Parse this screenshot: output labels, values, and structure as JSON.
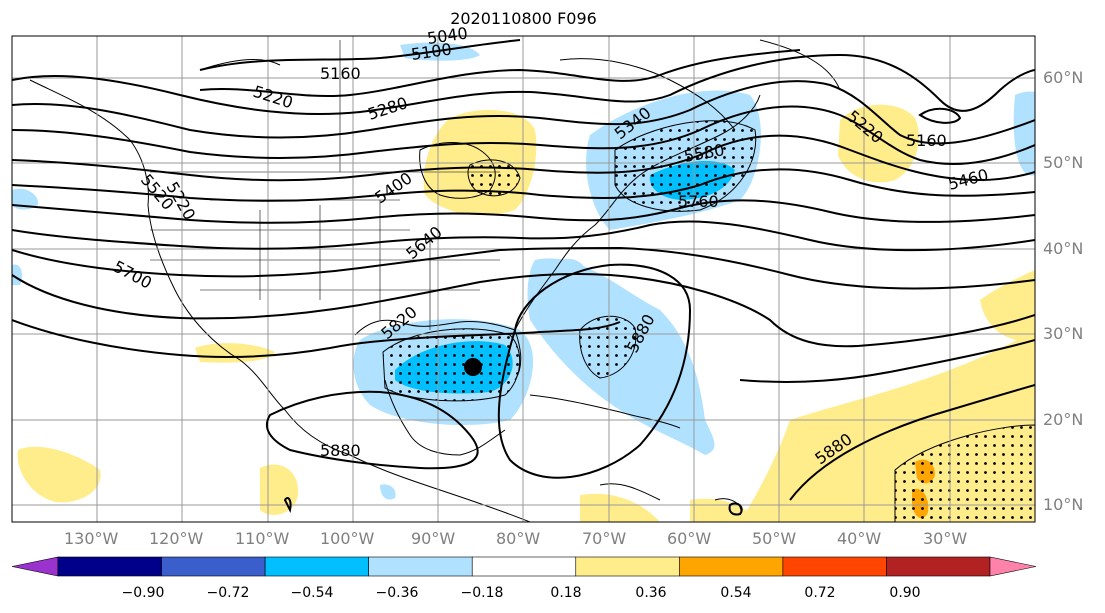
{
  "title": "2020110800 F096",
  "latitude_labels": [
    "60°N",
    "50°N",
    "40°N",
    "30°N",
    "20°N",
    "10°N"
  ],
  "longitude_labels": [
    "130°W",
    "120°W",
    "110°W",
    "100°W",
    "90°W",
    "80°W",
    "70°W",
    "60°W",
    "50°W",
    "40°W",
    "30°W"
  ],
  "contour_labels": [
    "5040",
    "5100",
    "5160",
    "5220",
    "5280",
    "5340",
    "5400",
    "5460",
    "5520",
    "5640",
    "5700",
    "5760",
    "5820",
    "5880",
    "5880",
    "5880",
    "5160",
    "5220",
    "5220",
    "5460",
    "5580"
  ],
  "colorbar": {
    "ticks": [
      "−0.90",
      "−0.72",
      "−0.54",
      "−0.36",
      "−0.18",
      "0.18",
      "0.36",
      "0.54",
      "0.72",
      "0.90"
    ],
    "colors": [
      "#9a32cd",
      "#00008b",
      "#3a5fcd",
      "#00bfff",
      "#b0e2ff",
      "#ffffff",
      "#ffec8b",
      "#ffa500",
      "#ff4500",
      "#b22222",
      "#ff82ab"
    ]
  },
  "colors": {
    "neg_light": "#b0e2ff",
    "neg_mid": "#00bfff",
    "pos_light": "#ffec8b",
    "pos_mid": "#ffa500",
    "grid": "#999999",
    "marker": "#000000"
  }
}
